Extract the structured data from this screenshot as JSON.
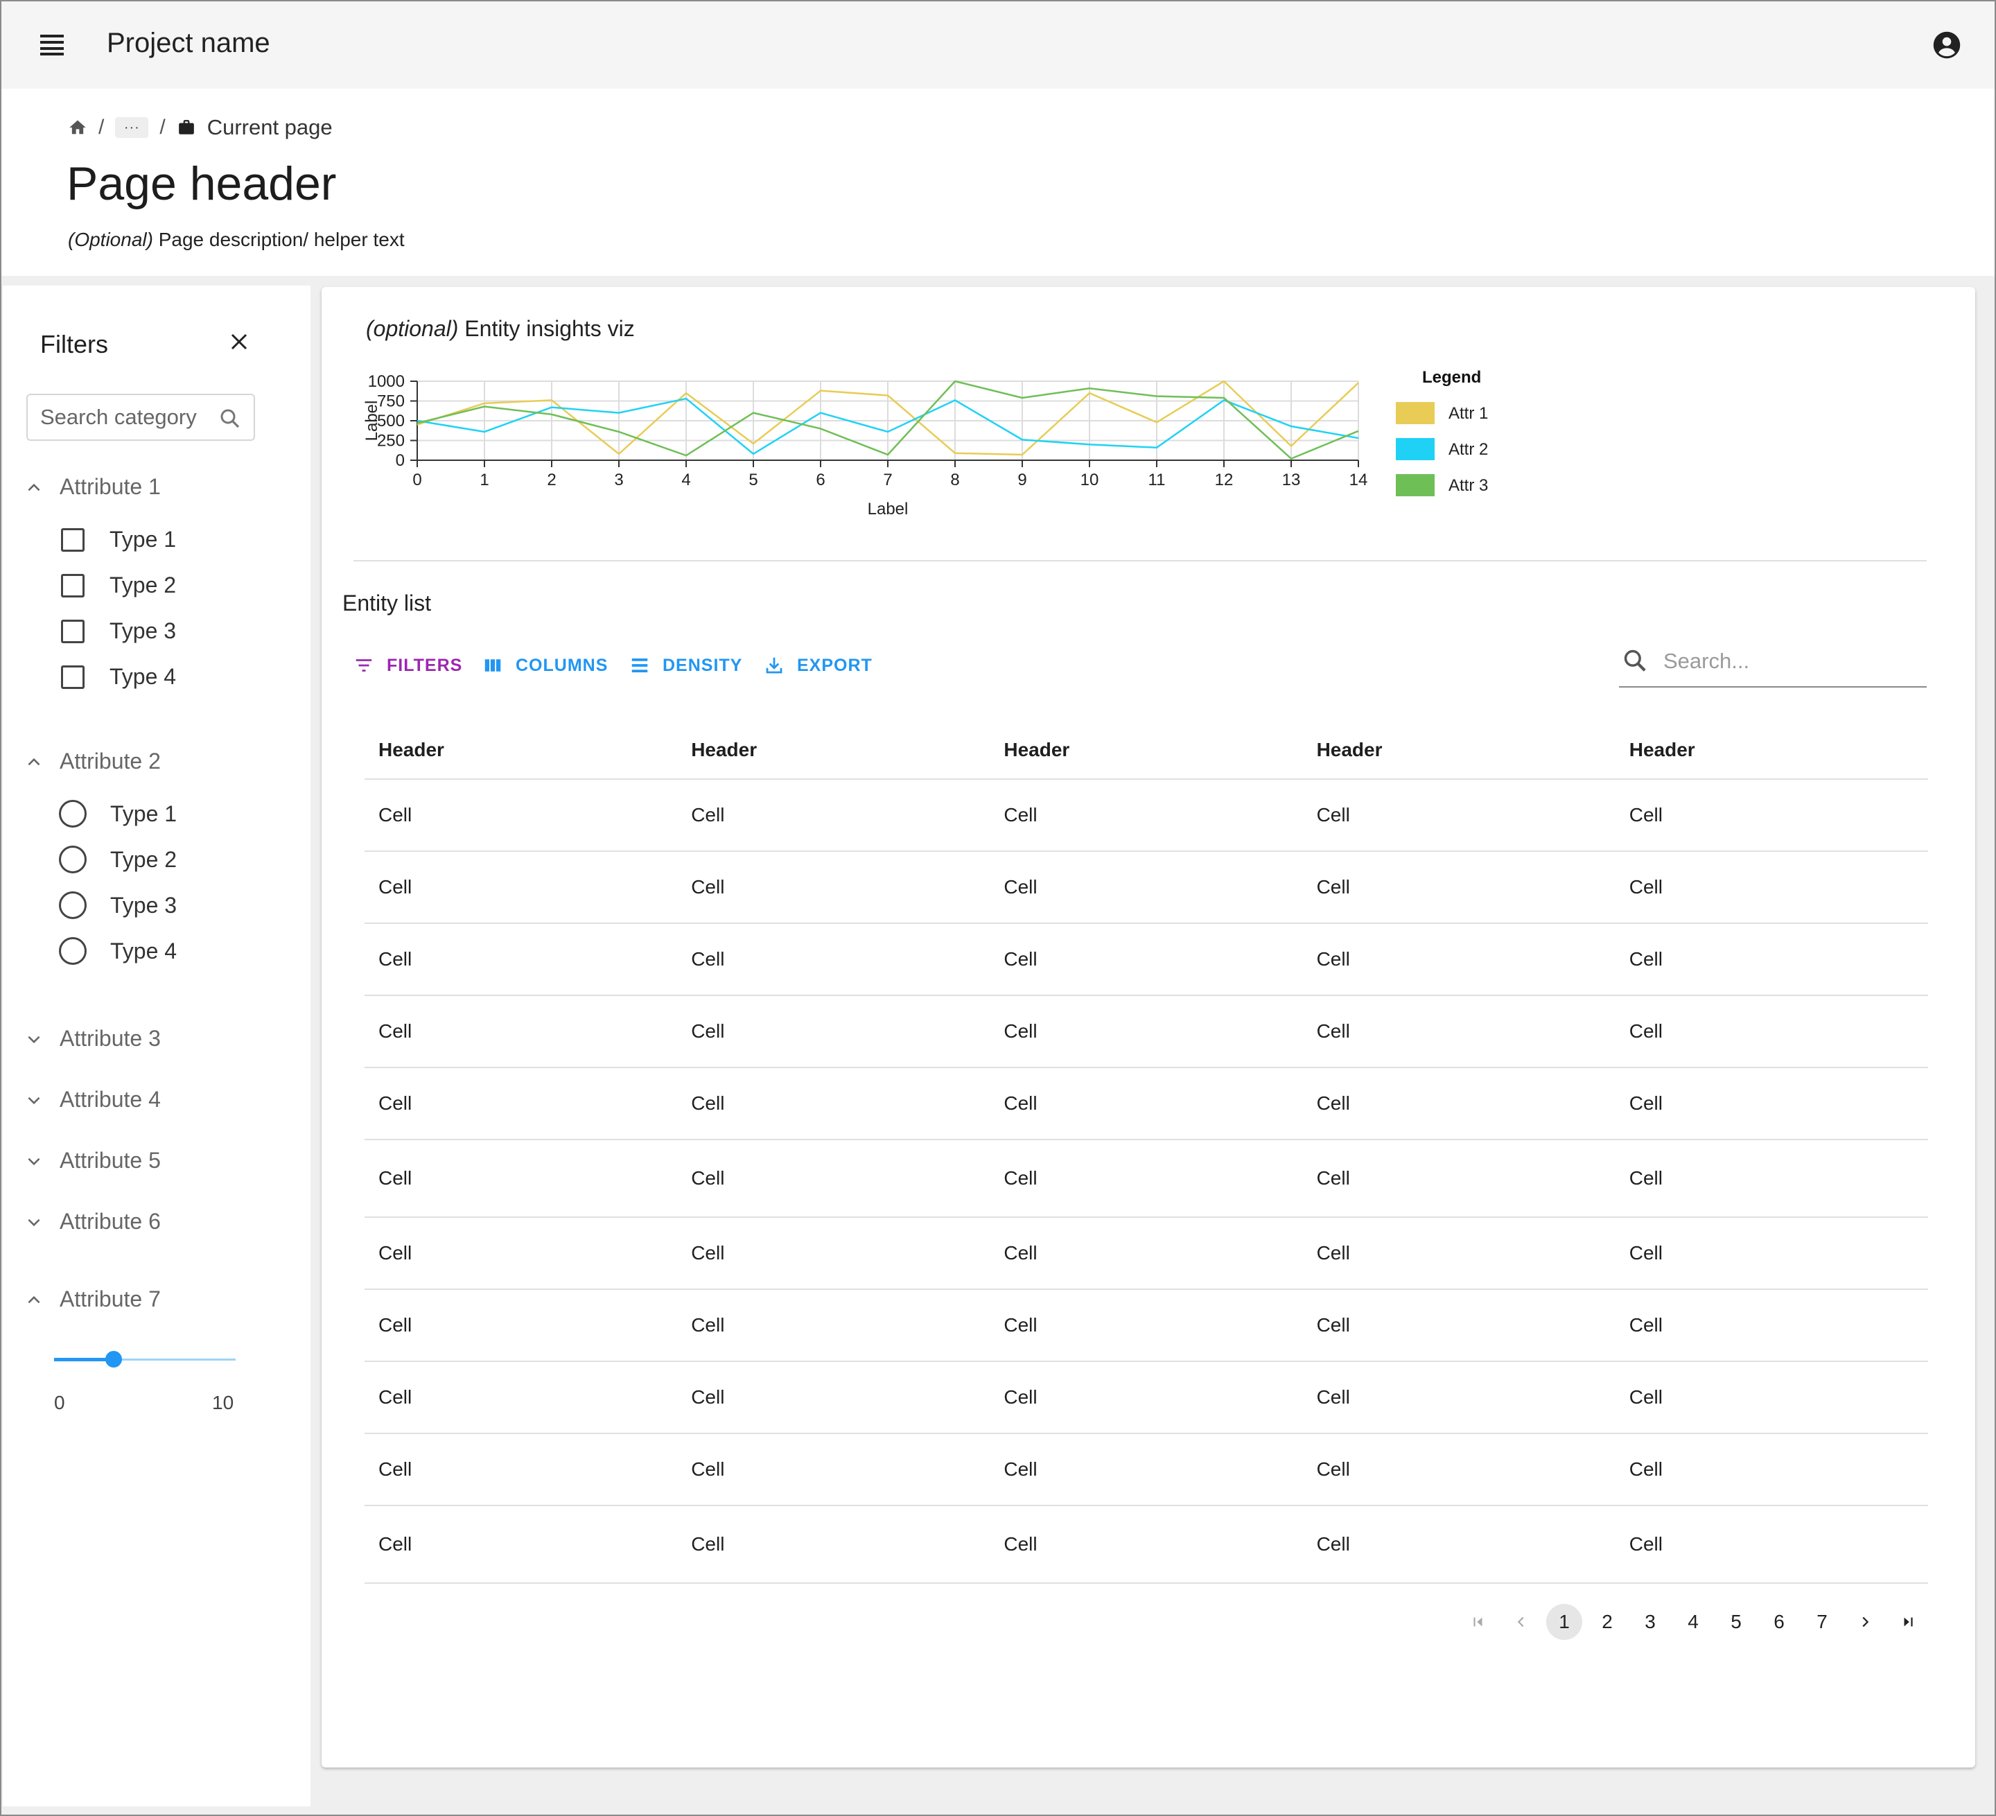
{
  "app": {
    "title": "Project name"
  },
  "breadcrumb": {
    "ellipsis": "···",
    "separator": "/",
    "current": "Current page"
  },
  "page": {
    "title": "Page header",
    "description_prefix": "(Optional)",
    "description": " Page description/ helper text"
  },
  "filters": {
    "title": "Filters",
    "search_placeholder": "Search category",
    "attribute1": {
      "label": "Attribute 1",
      "expanded": true,
      "options": [
        "Type 1",
        "Type 2",
        "Type 3",
        "Type 4"
      ]
    },
    "attribute2": {
      "label": "Attribute 2",
      "expanded": true,
      "options": [
        "Type 1",
        "Type 2",
        "Type 3",
        "Type 4"
      ]
    },
    "collapsed": [
      "Attribute 3",
      "Attribute 4",
      "Attribute 5",
      "Attribute 6"
    ],
    "attribute7": {
      "label": "Attribute 7",
      "expanded": true,
      "min": "0",
      "max": "10",
      "value": 3.3
    }
  },
  "insights": {
    "title_prefix": "(optional)",
    "title": " Entity insights viz"
  },
  "chart_data": {
    "type": "line",
    "x": [
      0,
      1,
      2,
      3,
      4,
      5,
      6,
      7,
      8,
      9,
      10,
      11,
      12,
      13,
      14
    ],
    "xlabel": "Label",
    "ylabel": "Label",
    "ylim": [
      0,
      1000
    ],
    "yticks": [
      "1000",
      "750",
      "500",
      "250",
      "0"
    ],
    "grid": true,
    "legend_title": "Legend",
    "legend_position": "right",
    "series": [
      {
        "name": "Attr 1",
        "color": "#e8cc55",
        "values": [
          450,
          720,
          760,
          80,
          850,
          210,
          880,
          820,
          90,
          70,
          850,
          480,
          1000,
          180,
          980
        ]
      },
      {
        "name": "Attr 2",
        "color": "#1fd2f5",
        "values": [
          500,
          360,
          670,
          600,
          780,
          80,
          600,
          360,
          760,
          260,
          200,
          160,
          760,
          430,
          280
        ]
      },
      {
        "name": "Attr 3",
        "color": "#6fbf57",
        "values": [
          470,
          680,
          580,
          360,
          60,
          600,
          400,
          70,
          1000,
          790,
          910,
          810,
          790,
          20,
          370
        ]
      }
    ]
  },
  "entity_list": {
    "title": "Entity list",
    "toolbar": {
      "filters": "FILTERS",
      "columns": "COLUMNS",
      "density": "DENSITY",
      "export": "EXPORT"
    },
    "search_placeholder": "Search...",
    "headers": [
      "Header",
      "Header",
      "Header",
      "Header",
      "Header"
    ],
    "rows": [
      [
        "Cell",
        "Cell",
        "Cell",
        "Cell",
        "Cell"
      ],
      [
        "Cell",
        "Cell",
        "Cell",
        "Cell",
        "Cell"
      ],
      [
        "Cell",
        "Cell",
        "Cell",
        "Cell",
        "Cell"
      ],
      [
        "Cell",
        "Cell",
        "Cell",
        "Cell",
        "Cell"
      ],
      [
        "Cell",
        "Cell",
        "Cell",
        "Cell",
        "Cell"
      ],
      [
        "Cell",
        "Cell",
        "Cell",
        "Cell",
        "Cell"
      ],
      [
        "Cell",
        "Cell",
        "Cell",
        "Cell",
        "Cell"
      ],
      [
        "Cell",
        "Cell",
        "Cell",
        "Cell",
        "Cell"
      ],
      [
        "Cell",
        "Cell",
        "Cell",
        "Cell",
        "Cell"
      ],
      [
        "Cell",
        "Cell",
        "Cell",
        "Cell",
        "Cell"
      ],
      [
        "Cell",
        "Cell",
        "Cell",
        "Cell",
        "Cell"
      ]
    ],
    "pagination": {
      "pages": [
        "1",
        "2",
        "3",
        "4",
        "5",
        "6",
        "7"
      ],
      "current": "1"
    }
  },
  "colors": {
    "primary": "#2196f3",
    "filters_accent": "#9c27b0"
  }
}
